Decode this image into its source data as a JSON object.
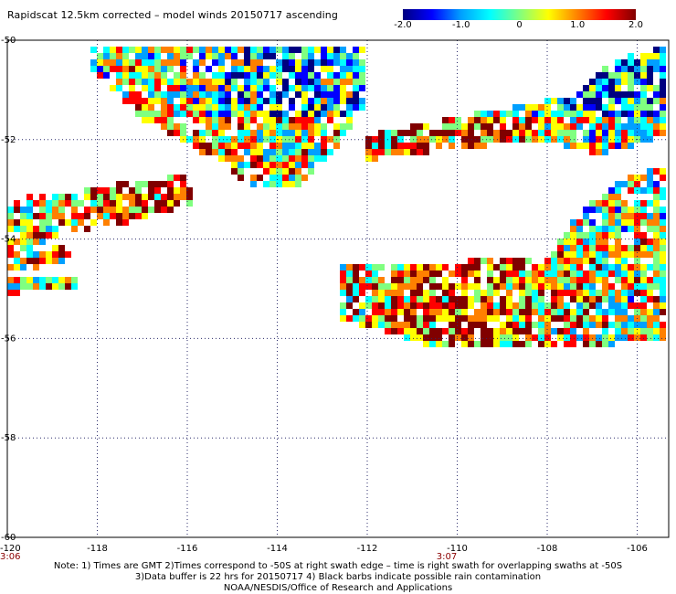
{
  "title": "Rapidscat 12.5km corrected – model winds 20150717 ascending",
  "colorbar": {
    "colors": [
      "#000080",
      "#0000ff",
      "#00a0ff",
      "#00ffff",
      "#80ff80",
      "#ffff00",
      "#ff8000",
      "#ff0000",
      "#800000"
    ],
    "ticks": [
      {
        "value": -2.0,
        "label": "-2.0"
      },
      {
        "value": -1.0,
        "label": "-1.0"
      },
      {
        "value": 0,
        "label": "0"
      },
      {
        "value": 1.0,
        "label": "1.0"
      },
      {
        "value": 2.0,
        "label": "2.0"
      }
    ],
    "range": [
      -2.0,
      2.0
    ]
  },
  "map": {
    "lon_range": [
      -120,
      -105.3
    ],
    "lat_range": [
      -60,
      -50
    ],
    "lon_ticks": [
      {
        "value": -118,
        "label": "-118"
      },
      {
        "value": -116,
        "label": "-116"
      },
      {
        "value": -114,
        "label": "-114"
      },
      {
        "value": -112,
        "label": "-112"
      },
      {
        "value": -110,
        "label": "-110"
      },
      {
        "value": -108,
        "label": "-108"
      },
      {
        "value": -106,
        "label": "-106"
      }
    ],
    "lat_ticks": [
      {
        "value": -50,
        "label": "-50"
      },
      {
        "value": -52,
        "label": "-52"
      },
      {
        "value": -54,
        "label": "-54"
      },
      {
        "value": -56,
        "label": "-56"
      },
      {
        "value": -58,
        "label": "-58"
      },
      {
        "value": -60,
        "label": "-60"
      }
    ],
    "corner_lon_label": "-120",
    "time_labels": [
      {
        "lon": -120,
        "label": "3:06"
      },
      {
        "lon": -110.3,
        "label": "3:07"
      }
    ],
    "swaths": [
      {
        "name": "swath-upper-left",
        "polygon": [
          [
            -118.2,
            -50.1
          ],
          [
            -112.1,
            -50.1
          ],
          [
            -112.1,
            -51.4
          ],
          [
            -112.8,
            -52.3
          ],
          [
            -113.4,
            -52.9
          ],
          [
            -114.6,
            -52.9
          ],
          [
            -115.8,
            -52.2
          ],
          [
            -117.0,
            -51.6
          ],
          [
            -118.2,
            -50.6
          ]
        ]
      },
      {
        "name": "swath-left-strip",
        "polygon": [
          [
            -120.0,
            -53.2
          ],
          [
            -116.0,
            -52.7
          ],
          [
            -115.9,
            -53.3
          ],
          [
            -117.5,
            -53.7
          ],
          [
            -118.8,
            -53.9
          ],
          [
            -120.0,
            -54.4
          ]
        ]
      },
      {
        "name": "swath-left-edge",
        "polygon": [
          [
            -120.0,
            -54.4
          ],
          [
            -118.7,
            -54.1
          ],
          [
            -118.6,
            -54.4
          ],
          [
            -119.5,
            -54.6
          ],
          [
            -120.0,
            -54.6
          ]
        ]
      },
      {
        "name": "swath-left-bits",
        "polygon": [
          [
            -120.0,
            -54.8
          ],
          [
            -118.4,
            -54.8
          ],
          [
            -118.4,
            -55.0
          ],
          [
            -120.0,
            -55.1
          ]
        ]
      },
      {
        "name": "swath-upper-right",
        "polygon": [
          [
            -112.0,
            -51.9
          ],
          [
            -107.4,
            -51.1
          ],
          [
            -106.6,
            -50.4
          ],
          [
            -105.3,
            -50.1
          ],
          [
            -105.3,
            -51.9
          ],
          [
            -106.8,
            -52.3
          ],
          [
            -108.1,
            -52.0
          ],
          [
            -112.0,
            -52.4
          ]
        ]
      },
      {
        "name": "swath-right-blob",
        "polygon": [
          [
            -112.6,
            -54.5
          ],
          [
            -108.0,
            -54.4
          ],
          [
            -107.4,
            -53.6
          ],
          [
            -106.4,
            -52.8
          ],
          [
            -105.3,
            -52.5
          ],
          [
            -105.3,
            -56.0
          ],
          [
            -107.5,
            -56.2
          ],
          [
            -110.4,
            -56.2
          ],
          [
            -112.6,
            -55.6
          ]
        ]
      }
    ],
    "notes": [
      "Note: 1) Times are GMT 2)Times correspond to -50S at right swath edge – time is right swath for overlapping swaths at -50S",
      "3)Data buffer is 22 hrs for 20150717 4) Black barbs indicate possible rain contamination",
      "NOAA/NESDIS/Office of Research and Applications"
    ]
  }
}
